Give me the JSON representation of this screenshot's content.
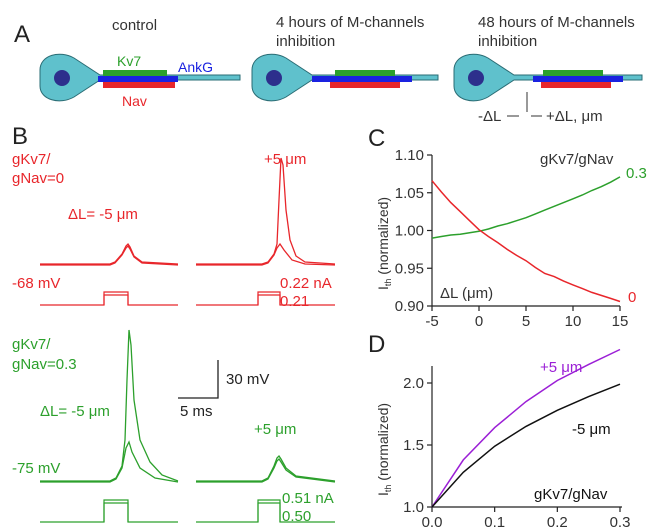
{
  "panel_labels": {
    "a": "A",
    "b": "B",
    "c": "C",
    "d": "D"
  },
  "panelA": {
    "conditions": [
      {
        "line1": "control",
        "line2": ""
      },
      {
        "line1": "4 hours of M-channels",
        "line2": "inhibition"
      },
      {
        "line1": "48 hours of M-channels",
        "line2": "inhibition"
      }
    ],
    "labels": {
      "kv7": "Kv7",
      "ankg": "AnkG",
      "nav": "Nav"
    },
    "shift_labels": {
      "minus": "-ΔL",
      "plus": "+ΔL, μm"
    }
  },
  "panelB": {
    "red": {
      "ratio_line1": "gKv7/",
      "ratio_line2": "gNav=0",
      "left_shift": "ΔL= -5 μm",
      "right_shift": "+5 μm",
      "vrest": "-68 mV",
      "current_hi": "0.22 nA",
      "current_lo": "0.21"
    },
    "green": {
      "ratio_line1": "gKv7/",
      "ratio_line2": "gNav=0.3",
      "left_shift": "ΔL= -5 μm",
      "right_shift": "+5 μm",
      "vrest": "-75 mV",
      "current_hi": "0.51 nA",
      "current_lo": "0.50"
    },
    "scalebar": {
      "voltage": "30 mV",
      "time": "5 ms"
    }
  },
  "chart_data": [
    {
      "panel": "C",
      "type": "line",
      "xlabel": "ΔL (μm)",
      "ylabel_main": "I",
      "ylabel_sub": "th",
      "ylabel_rest": " (normalized)",
      "legend_title": "gKv7/gNav",
      "xlim": [
        -5,
        15
      ],
      "ylim": [
        0.9,
        1.1
      ],
      "xticks": [
        -5,
        0,
        5,
        10,
        15
      ],
      "yticks": [
        0.9,
        0.95,
        1.0,
        1.05,
        1.1
      ],
      "ytick_labels": [
        "0.90",
        "0.95",
        "1.00",
        "1.05",
        "1.10"
      ],
      "series": [
        {
          "name": "0.3",
          "color": "#2ca02c",
          "x": [
            -5,
            -4,
            -3,
            -2,
            -1,
            0,
            1,
            2,
            3,
            4,
            5,
            6,
            7,
            8,
            9,
            10,
            11,
            12,
            13,
            14,
            15
          ],
          "y": [
            0.99,
            0.992,
            0.994,
            0.995,
            0.997,
            0.999,
            1.002,
            1.006,
            1.009,
            1.013,
            1.017,
            1.022,
            1.027,
            1.032,
            1.037,
            1.042,
            1.047,
            1.053,
            1.058,
            1.064,
            1.071
          ]
        },
        {
          "name": "0",
          "color": "#e8262b",
          "x": [
            -5,
            -4,
            -3,
            -2,
            -1,
            0,
            1,
            2,
            3,
            4,
            5,
            6,
            7,
            8,
            9,
            10,
            11,
            12,
            13,
            14,
            15
          ],
          "y": [
            1.066,
            1.051,
            1.037,
            1.025,
            1.013,
            1.001,
            0.992,
            0.984,
            0.975,
            0.967,
            0.96,
            0.951,
            0.943,
            0.939,
            0.933,
            0.928,
            0.923,
            0.918,
            0.914,
            0.91,
            0.906
          ]
        }
      ]
    },
    {
      "panel": "D",
      "type": "line",
      "xlabel": "gKv7/gNav",
      "ylabel_main": "I",
      "ylabel_sub": "th",
      "ylabel_rest": " (normalized)",
      "xlim": [
        0,
        0.3
      ],
      "ylim": [
        1.0,
        2.25
      ],
      "xticks": [
        0,
        0.1,
        0.2,
        0.3
      ],
      "xtick_labels": [
        "0.0",
        "0.1",
        "0.2",
        "0.3"
      ],
      "yticks": [
        1.0,
        1.5,
        2.0
      ],
      "ytick_labels": [
        "1.0",
        "1.5",
        "2.0"
      ],
      "series": [
        {
          "name": "+5 μm",
          "color": "#9b1fd6",
          "x": [
            0,
            0.05,
            0.1,
            0.15,
            0.2,
            0.25,
            0.3
          ],
          "y": [
            1.0,
            1.38,
            1.64,
            1.85,
            2.02,
            2.15,
            2.27
          ]
        },
        {
          "name": "-5 μm",
          "color": "#111111",
          "x": [
            0,
            0.05,
            0.1,
            0.15,
            0.2,
            0.25,
            0.3
          ],
          "y": [
            1.0,
            1.28,
            1.49,
            1.65,
            1.78,
            1.89,
            1.99
          ]
        }
      ]
    }
  ],
  "colors": {
    "red": "#e8262b",
    "green": "#2ca02c",
    "blue": "#1a22e0",
    "cyan": "#5fc1cc",
    "purple": "#9b1fd6",
    "dark": "#222222"
  }
}
